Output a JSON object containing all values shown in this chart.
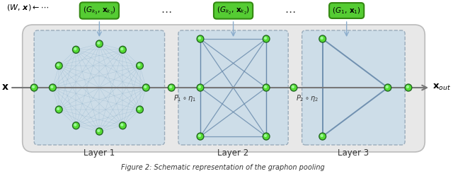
{
  "outer_box_fill": "#e8e8e8",
  "outer_box_edge": "#bbbbbb",
  "inner_box_fill": "#cddde8",
  "inner_box_edge": "#9aacbb",
  "node_fill": "#55dd33",
  "node_dark": "#226622",
  "node_highlight": "#aaffaa",
  "edge_color": "#8aaec8",
  "edge_color_dark": "#6688aa",
  "green_box_fill": "#55cc33",
  "green_box_edge": "#338811",
  "arrow_color": "#8aaccc",
  "main_arrow_color": "#777777",
  "layer_labels": [
    "Layer 1",
    "Layer 2",
    "Layer 3"
  ],
  "caption": "Figure 2: Schematic representation of the graphon pooling"
}
